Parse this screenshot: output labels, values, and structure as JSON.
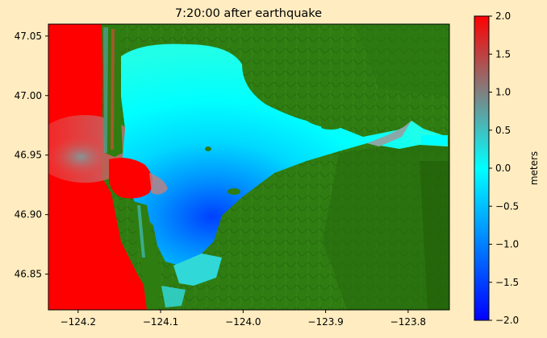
{
  "title": "7:20:00 after earthquake",
  "map": {
    "x_ticks": [
      "−124.2",
      "−124.1",
      "−124.0",
      "−123.9",
      "−123.8"
    ],
    "y_ticks": [
      "47.05",
      "47.00",
      "46.95",
      "46.90",
      "46.85"
    ],
    "x_tick_values": [
      -124.2,
      -124.1,
      -124.0,
      -123.9,
      -123.8
    ],
    "y_tick_values": [
      47.05,
      47.0,
      46.95,
      46.9,
      46.85
    ],
    "xlim": [
      -124.236,
      -123.75
    ],
    "ylim": [
      46.82,
      47.06
    ],
    "colors": {
      "ocean_red": "#ff0000",
      "land_green": "#2e7d10",
      "water_cyan": "#00ffff",
      "water_blue": "#0070ff"
    }
  },
  "colorbar": {
    "label": "meters",
    "ticks": [
      "2.0",
      "1.5",
      "1.0",
      "0.5",
      "0.0",
      "−0.5",
      "−1.0",
      "−1.5",
      "−2.0"
    ],
    "tick_values": [
      2.0,
      1.5,
      1.0,
      0.5,
      0.0,
      -0.5,
      -1.0,
      -1.5,
      -2.0
    ],
    "range": [
      -2.0,
      2.0
    ],
    "colormap": [
      "#0000ff",
      "#0080ff",
      "#00ffff",
      "#808080",
      "#ff0000"
    ]
  }
}
